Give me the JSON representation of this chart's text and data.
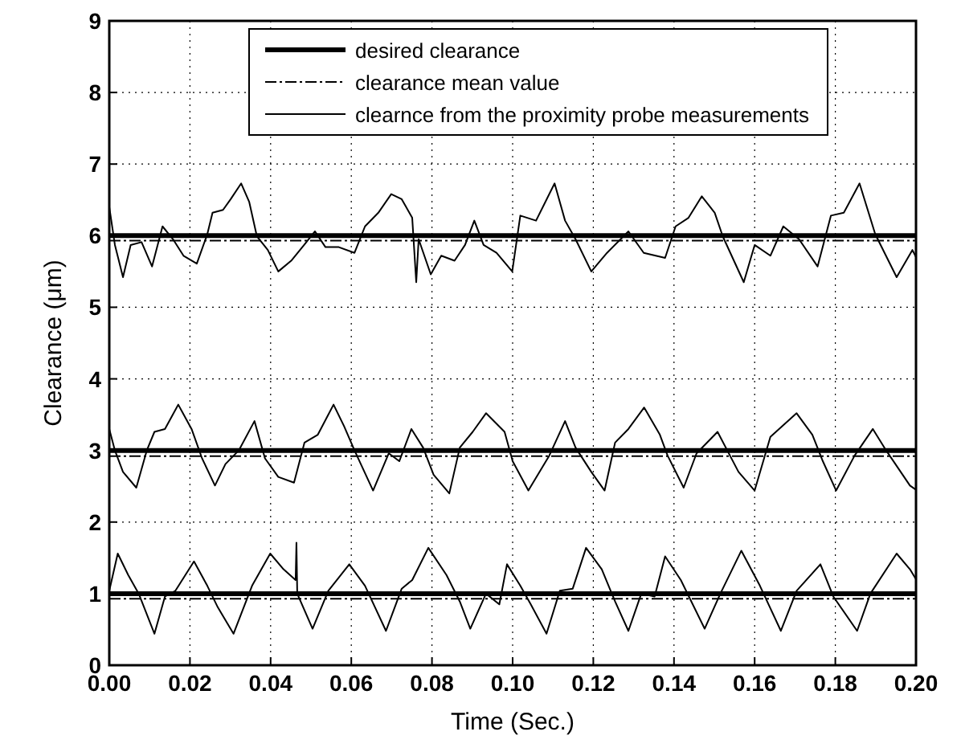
{
  "chart_data": {
    "type": "line",
    "xlabel": "Time (Sec.)",
    "ylabel": "Clearance (μm)",
    "xlim": [
      0,
      0.2
    ],
    "ylim": [
      0,
      9
    ],
    "xticks": [
      {
        "value": 0,
        "label": "0.00"
      },
      {
        "value": 0.02,
        "label": "0.02"
      },
      {
        "value": 0.04,
        "label": "0.04"
      },
      {
        "value": 0.06,
        "label": "0.06"
      },
      {
        "value": 0.08,
        "label": "0.08"
      },
      {
        "value": 0.1,
        "label": "0.10"
      },
      {
        "value": 0.12,
        "label": "0.12"
      },
      {
        "value": 0.14,
        "label": "0.14"
      },
      {
        "value": 0.16,
        "label": "0.16"
      },
      {
        "value": 0.18,
        "label": "0.18"
      },
      {
        "value": 0.2,
        "label": "0.20"
      }
    ],
    "yticks": [
      0,
      1,
      2,
      3,
      4,
      5,
      6,
      7,
      8,
      9
    ],
    "grid": true,
    "legend": "top",
    "marker": "none",
    "series": [
      {
        "name": "desired clearance",
        "color": "#000000",
        "line_style": "solid",
        "x": [
          0,
          0.2
        ],
        "values": [
          6,
          6
        ]
      },
      {
        "name": "clearance mean value",
        "color": "#000000",
        "line_style": "dashed",
        "x": [
          0,
          0.2
        ],
        "values": [
          5.93,
          5.93
        ]
      },
      {
        "name": "clearnce from the proximity probe measurements",
        "color": "#000000",
        "line_style": "solid",
        "x": [
          0,
          0.0014,
          0.0034,
          0.0053,
          0.008,
          0.0106,
          0.0132,
          0.0158,
          0.0184,
          0.0217,
          0.0243,
          0.0256,
          0.0282,
          0.0301,
          0.0327,
          0.0347,
          0.0366,
          0.0393,
          0.0419,
          0.0451,
          0.0483,
          0.051,
          0.0536,
          0.0569,
          0.0608,
          0.0634,
          0.0667,
          0.0699,
          0.0725,
          0.0751,
          0.0761,
          0.0767,
          0.0797,
          0.0823,
          0.0856,
          0.0882,
          0.0905,
          0.0928,
          0.096,
          0.0999,
          0.1019,
          0.1058,
          0.1104,
          0.113,
          0.1156,
          0.1195,
          0.1234,
          0.1287,
          0.1325,
          0.1378,
          0.1404,
          0.1436,
          0.1469,
          0.1501,
          0.1521,
          0.1573,
          0.16,
          0.1639,
          0.1671,
          0.171,
          0.1756,
          0.1789,
          0.1821,
          0.186,
          0.1899,
          0.1952,
          0.1991,
          0.2
        ],
        "values": [
          6.4,
          5.87,
          5.42,
          5.87,
          5.91,
          5.57,
          6.13,
          5.95,
          5.72,
          5.61,
          6.02,
          6.32,
          6.36,
          6.51,
          6.73,
          6.47,
          5.99,
          5.8,
          5.5,
          5.65,
          5.87,
          6.06,
          5.84,
          5.84,
          5.76,
          6.13,
          6.32,
          6.58,
          6.51,
          6.25,
          5.35,
          5.95,
          5.46,
          5.72,
          5.65,
          5.87,
          6.21,
          5.87,
          5.76,
          5.5,
          6.28,
          6.21,
          6.73,
          6.21,
          5.95,
          5.5,
          5.76,
          6.06,
          5.76,
          5.69,
          6.13,
          6.25,
          6.55,
          6.32,
          5.99,
          5.35,
          5.87,
          5.72,
          6.13,
          5.95,
          5.57,
          6.28,
          6.32,
          6.73,
          6.02,
          5.42,
          5.8,
          5.7
        ]
      },
      {
        "color": "#000000",
        "line_style": "solid",
        "x": [
          0,
          0.2
        ],
        "values": [
          3,
          3
        ]
      },
      {
        "color": "#000000",
        "line_style": "dashed",
        "x": [
          0,
          0.2
        ],
        "values": [
          2.92,
          2.92
        ]
      },
      {
        "color": "#000000",
        "line_style": "solid",
        "x": [
          0,
          0.0014,
          0.0034,
          0.0067,
          0.0093,
          0.0112,
          0.0138,
          0.0171,
          0.0204,
          0.023,
          0.0262,
          0.0288,
          0.0321,
          0.036,
          0.0386,
          0.0419,
          0.0458,
          0.0484,
          0.0517,
          0.0556,
          0.0582,
          0.0608,
          0.0654,
          0.0693,
          0.0719,
          0.0749,
          0.0778,
          0.0804,
          0.0843,
          0.0869,
          0.0901,
          0.0934,
          0.098,
          0.1,
          0.1039,
          0.1091,
          0.113,
          0.1156,
          0.1195,
          0.1228,
          0.1254,
          0.1287,
          0.1326,
          0.1365,
          0.1384,
          0.1424,
          0.1456,
          0.1508,
          0.156,
          0.16,
          0.1639,
          0.1704,
          0.1743,
          0.1769,
          0.1802,
          0.1848,
          0.1893,
          0.1926,
          0.1985,
          0.2
        ],
        "values": [
          3.3,
          3,
          2.7,
          2.48,
          3,
          3.26,
          3.3,
          3.64,
          3.3,
          2.89,
          2.51,
          2.81,
          3,
          3.41,
          2.89,
          2.63,
          2.55,
          3.11,
          3.22,
          3.64,
          3.34,
          3,
          2.44,
          2.96,
          2.85,
          3.3,
          3.04,
          2.66,
          2.4,
          3.04,
          3.26,
          3.52,
          3.26,
          2.85,
          2.44,
          2.93,
          3.41,
          3.04,
          2.7,
          2.44,
          3.11,
          3.3,
          3.6,
          3.22,
          2.93,
          2.48,
          2.96,
          3.26,
          2.7,
          2.44,
          3.19,
          3.52,
          3.22,
          2.85,
          2.44,
          2.93,
          3.3,
          3,
          2.51,
          2.45
        ]
      },
      {
        "color": "#000000",
        "line_style": "solid",
        "x": [
          0,
          0.2
        ],
        "values": [
          1,
          1
        ]
      },
      {
        "color": "#000000",
        "line_style": "dashed",
        "x": [
          0,
          0.2
        ],
        "values": [
          0.93,
          0.93
        ]
      },
      {
        "color": "#000000",
        "line_style": "solid",
        "x": [
          0,
          0.0021,
          0.0047,
          0.0073,
          0.0112,
          0.0138,
          0.0164,
          0.021,
          0.0243,
          0.0269,
          0.0308,
          0.0354,
          0.0399,
          0.0432,
          0.0462,
          0.0464,
          0.0466,
          0.0504,
          0.0543,
          0.0595,
          0.0634,
          0.0686,
          0.0725,
          0.0751,
          0.0791,
          0.0836,
          0.0869,
          0.0895,
          0.0934,
          0.0967,
          0.0986,
          0.1019,
          0.1045,
          0.1084,
          0.1117,
          0.1149,
          0.1182,
          0.1221,
          0.1254,
          0.1287,
          0.1319,
          0.1352,
          0.1378,
          0.1417,
          0.1476,
          0.1515,
          0.1567,
          0.1613,
          0.1665,
          0.1704,
          0.1763,
          0.1795,
          0.1854,
          0.1887,
          0.1952,
          0.1985,
          0.2
        ],
        "values": [
          1.04,
          1.56,
          1.26,
          1,
          0.44,
          0.96,
          1.04,
          1.45,
          1.11,
          0.81,
          0.44,
          1.11,
          1.56,
          1.34,
          1.19,
          1.71,
          1,
          0.51,
          1.04,
          1.41,
          1.11,
          0.48,
          1.07,
          1.19,
          1.64,
          1.26,
          0.89,
          0.51,
          1,
          0.85,
          1.41,
          1.11,
          0.85,
          0.44,
          1.04,
          1.07,
          1.64,
          1.34,
          0.89,
          0.48,
          1,
          0.96,
          1.52,
          1.19,
          0.51,
          1,
          1.6,
          1.11,
          0.48,
          1.04,
          1.41,
          0.96,
          0.48,
          1,
          1.56,
          1.34,
          1.2
        ]
      }
    ]
  }
}
